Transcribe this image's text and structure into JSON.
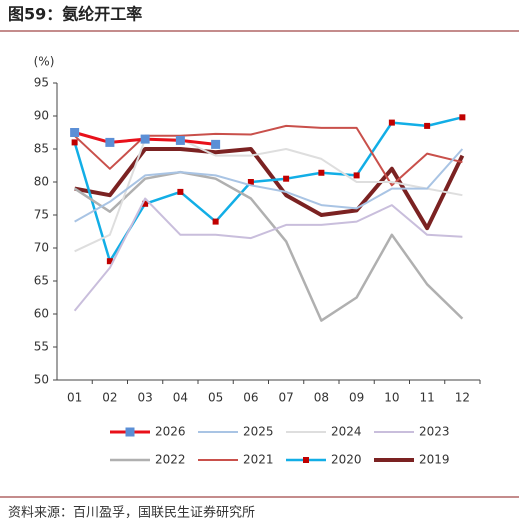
{
  "chart_data": {
    "type": "line",
    "title": "图59：氨纶开工率",
    "y_unit": "(%)",
    "source": "资料来源：百川盈孚，国联民生证券研究所",
    "categories": [
      "01",
      "02",
      "03",
      "04",
      "05",
      "06",
      "07",
      "08",
      "09",
      "10",
      "11",
      "12"
    ],
    "ylim": [
      50,
      95
    ],
    "yticks": [
      50,
      55,
      60,
      65,
      70,
      75,
      80,
      85,
      90,
      95
    ],
    "grid": false,
    "series": [
      {
        "name": "2026",
        "color": "#e8101a",
        "marker_color": "#5b8fd6",
        "width": 3,
        "values": [
          87.5,
          86,
          86.5,
          86.3,
          85.7,
          null,
          null,
          null,
          null,
          null,
          null,
          null
        ]
      },
      {
        "name": "2025",
        "color": "#a9c4e4",
        "width": 2,
        "values": [
          74,
          77,
          81,
          81.5,
          81,
          79.5,
          78.5,
          76.5,
          76,
          79,
          79,
          85
        ]
      },
      {
        "name": "2024",
        "color": "#dedede",
        "width": 2,
        "values": [
          69.5,
          72,
          86.5,
          86.5,
          84,
          84,
          85,
          83.5,
          80,
          80,
          79,
          78
        ]
      },
      {
        "name": "2023",
        "color": "#c9bedc",
        "width": 2,
        "values": [
          60.5,
          67,
          77.5,
          72,
          72,
          71.5,
          73.5,
          73.5,
          74,
          76.5,
          72,
          71.7
        ]
      },
      {
        "name": "2022",
        "color": "#b0b0b0",
        "width": 2.5,
        "values": [
          79,
          75.5,
          80.5,
          81.5,
          80.5,
          77.5,
          71,
          59,
          62.5,
          72,
          64.5,
          59.3
        ]
      },
      {
        "name": "2021",
        "color": "#c9504b",
        "width": 2,
        "values": [
          87,
          82,
          87,
          87,
          87.3,
          87.2,
          88.5,
          88.2,
          88.2,
          79.5,
          84.3,
          83
        ]
      },
      {
        "name": "2020",
        "color": "#12aee6",
        "marker_color": "#c00000",
        "width": 2.5,
        "values": [
          86,
          68,
          76.7,
          78.5,
          74,
          80,
          80.5,
          81.4,
          81,
          89,
          88.5,
          89.8
        ]
      },
      {
        "name": "2019",
        "color": "#7b2222",
        "width": 4,
        "values": [
          79,
          78,
          85,
          85,
          84.5,
          85,
          78,
          75,
          75.7,
          82,
          73,
          84
        ]
      }
    ]
  }
}
